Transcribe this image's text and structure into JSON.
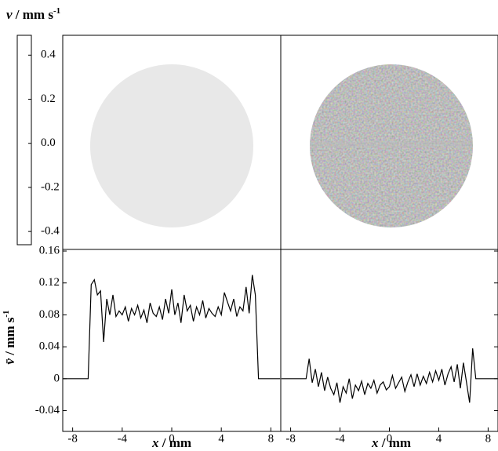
{
  "chart_data": [
    {
      "type": "heatmap",
      "title": {
        "symbol": "v",
        "unit": " / mm s",
        "exponent": "-1"
      },
      "colorbar": {
        "ylim": [
          -0.46,
          0.49
        ],
        "yticks": [
          0.4,
          0.2,
          {
            "value": 0,
            "label": "0.0"
          },
          -0.2,
          -0.4
        ]
      }
    },
    {
      "type": "line",
      "xlabel": {
        "symbol": "x",
        "unit": " / mm"
      },
      "ylabel": {
        "symbol": "v̄",
        "unit": " / mm s",
        "exponent": "-1"
      },
      "xlim": [
        -8.8,
        8.8
      ],
      "ylim": [
        -0.066,
        0.162
      ],
      "xticks": [
        -8,
        -4,
        0,
        4,
        8
      ],
      "yticks": [
        0.16,
        0.12,
        0.08,
        0.04,
        0,
        -0.04
      ],
      "color": "#000000",
      "x": [
        -8.75,
        -8.5,
        -8.25,
        -8,
        -7.75,
        -7.5,
        -7.25,
        -7,
        -6.75,
        -6.5,
        -6.25,
        -6,
        -5.75,
        -5.5,
        -5.25,
        -5,
        -4.75,
        -4.5,
        -4.25,
        -4,
        -3.75,
        -3.5,
        -3.25,
        -3,
        -2.75,
        -2.5,
        -2.25,
        -2,
        -1.75,
        -1.5,
        -1.25,
        -1,
        -0.75,
        -0.5,
        -0.25,
        0,
        0.25,
        0.5,
        0.75,
        1,
        1.25,
        1.5,
        1.75,
        2,
        2.25,
        2.5,
        2.75,
        3,
        3.25,
        3.5,
        3.75,
        4,
        4.25,
        4.5,
        4.75,
        5,
        5.25,
        5.5,
        5.75,
        6,
        6.25,
        6.5,
        6.75,
        7,
        7.25,
        7.5,
        7.75,
        8,
        8.25,
        8.5,
        8.75
      ],
      "values": [
        0,
        0,
        0,
        0,
        0,
        0,
        0,
        0,
        0,
        0.118,
        0.124,
        0.105,
        0.11,
        0.046,
        0.1,
        0.08,
        0.105,
        0.078,
        0.085,
        0.08,
        0.09,
        0.072,
        0.088,
        0.08,
        0.092,
        0.076,
        0.086,
        0.07,
        0.095,
        0.082,
        0.078,
        0.09,
        0.074,
        0.1,
        0.082,
        0.112,
        0.08,
        0.095,
        0.07,
        0.105,
        0.085,
        0.092,
        0.072,
        0.09,
        0.08,
        0.098,
        0.076,
        0.088,
        0.082,
        0.078,
        0.09,
        0.08,
        0.108,
        0.096,
        0.085,
        0.1,
        0.078,
        0.09,
        0.085,
        0.115,
        0.082,
        0.13,
        0.105,
        0,
        0,
        0,
        0,
        0,
        0,
        0,
        0
      ]
    },
    {
      "type": "line",
      "xlabel": {
        "symbol": "x",
        "unit": " / mm"
      },
      "xlim": [
        -8.8,
        8.8
      ],
      "ylim": [
        -0.066,
        0.162
      ],
      "xticks": [
        -8,
        -4,
        0,
        4,
        8
      ],
      "yticks": [
        0.16,
        0.12,
        0.08,
        0.04,
        0,
        -0.04
      ],
      "color": "#000000",
      "x": [
        -8.75,
        -8.5,
        -8.25,
        -8,
        -7.75,
        -7.5,
        -7.25,
        -7,
        -6.75,
        -6.5,
        -6.25,
        -6,
        -5.75,
        -5.5,
        -5.25,
        -5,
        -4.75,
        -4.5,
        -4.25,
        -4,
        -3.75,
        -3.5,
        -3.25,
        -3,
        -2.75,
        -2.5,
        -2.25,
        -2,
        -1.75,
        -1.5,
        -1.25,
        -1,
        -0.75,
        -0.5,
        -0.25,
        0,
        0.25,
        0.5,
        0.75,
        1,
        1.25,
        1.5,
        1.75,
        2,
        2.25,
        2.5,
        2.75,
        3,
        3.25,
        3.5,
        3.75,
        4,
        4.25,
        4.5,
        4.75,
        5,
        5.25,
        5.5,
        5.75,
        6,
        6.25,
        6.5,
        6.75,
        7,
        7.25,
        7.5,
        7.75,
        8,
        8.25,
        8.5,
        8.75
      ],
      "values": [
        0,
        0,
        0,
        0,
        0,
        0,
        0,
        0,
        0,
        0.025,
        -0.005,
        0.012,
        -0.01,
        0.008,
        -0.015,
        0.002,
        -0.012,
        -0.02,
        -0.005,
        -0.03,
        -0.01,
        -0.018,
        0,
        -0.025,
        -0.008,
        -0.015,
        -0.003,
        -0.02,
        -0.006,
        -0.012,
        -0.002,
        -0.018,
        -0.008,
        -0.004,
        -0.014,
        -0.01,
        0.004,
        -0.012,
        -0.005,
        0.002,
        -0.016,
        -0.004,
        0.005,
        -0.01,
        0.006,
        -0.008,
        0.003,
        -0.006,
        0.008,
        -0.004,
        0.01,
        -0.002,
        0.012,
        -0.008,
        0.006,
        0.015,
        -0.004,
        0.018,
        -0.012,
        0.02,
        -0.005,
        -0.03,
        0.038,
        0,
        0,
        0,
        0,
        0,
        0,
        0,
        0
      ]
    }
  ]
}
